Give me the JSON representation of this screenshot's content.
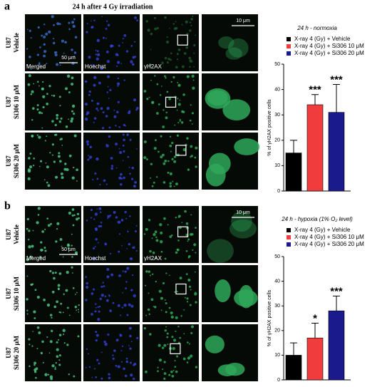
{
  "panels": [
    {
      "label": "a",
      "title": "24 h after 4 Gy irradiation",
      "rows": [
        [
          "U87",
          "Vehicle"
        ],
        [
          "U87",
          "Si306 10 μM"
        ],
        [
          "U87",
          "Si306 20 μM"
        ]
      ],
      "columns": [
        "Merged",
        "Hoechst",
        "γH2AX"
      ],
      "scale_bars": [
        "50 μm",
        "10 μm"
      ]
    },
    {
      "label": "b",
      "rows": [
        [
          "U87",
          "Vehicle"
        ],
        [
          "U87",
          "Si306 10 μM"
        ],
        [
          "U87",
          "Si306 20 μM"
        ]
      ],
      "columns": [
        "Merged",
        "Hoechst",
        "γH2AX"
      ],
      "scale_bars": [
        "50 μm",
        "10 μm"
      ]
    }
  ],
  "chart_data": [
    {
      "type": "bar",
      "title": "24 h - normoxia",
      "y_label": "% of γH2AX positive cells",
      "ylim": [
        0,
        50
      ],
      "yticks": [
        0,
        10,
        20,
        30,
        40,
        50
      ],
      "series": [
        {
          "name": "X-ray 4 (Gy) + Vehicle",
          "color": "#000000",
          "values": [
            15
          ],
          "errors": [
            5
          ]
        },
        {
          "name": "X-ray 4 (Gy) + Si306 10 μM",
          "color": "#f03c3c",
          "values": [
            34
          ],
          "errors": [
            4
          ],
          "annotation": "***"
        },
        {
          "name": "X-ray 4 (Gy) + Si306 20 μM",
          "color": "#1a1a8c",
          "values": [
            31
          ],
          "errors": [
            11
          ],
          "annotation": "***"
        }
      ]
    },
    {
      "type": "bar",
      "title": "24 h - hypoxia (1% O₂ level)",
      "y_label": "% of γH2AX positive cells",
      "ylim": [
        0,
        50
      ],
      "yticks": [
        0,
        10,
        20,
        30,
        40,
        50
      ],
      "series": [
        {
          "name": "X-ray 4 (Gy) + Vehicle",
          "color": "#000000",
          "values": [
            10
          ],
          "errors": [
            5
          ]
        },
        {
          "name": "X-ray 4 (Gy) + Si306 10 μM",
          "color": "#f03c3c",
          "values": [
            17
          ],
          "errors": [
            6
          ],
          "annotation": "*"
        },
        {
          "name": "X-ray 4 (Gy) + Si306 20 μM",
          "color": "#1a1a8c",
          "values": [
            28
          ],
          "errors": [
            6
          ],
          "annotation": "***"
        }
      ]
    }
  ]
}
